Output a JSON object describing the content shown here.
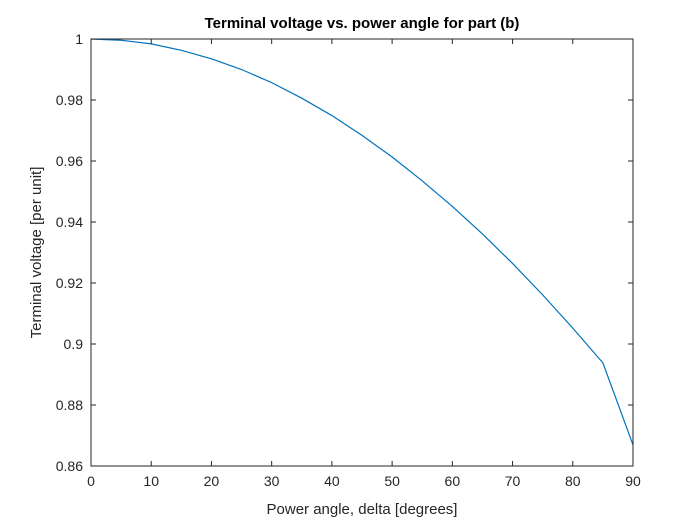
{
  "chart_data": {
    "type": "line",
    "title": "Terminal voltage vs. power angle for part (b)",
    "xlabel": "Power angle, delta [degrees]",
    "ylabel": "Terminal voltage [per unit]",
    "xlim": [
      0,
      90
    ],
    "ylim": [
      0.86,
      1
    ],
    "xticks": [
      0,
      10,
      20,
      30,
      40,
      50,
      60,
      70,
      80,
      90
    ],
    "yticks": [
      0.86,
      0.88,
      0.9,
      0.92,
      0.94,
      0.96,
      0.98,
      1
    ],
    "xtick_labels": [
      "0",
      "10",
      "20",
      "30",
      "40",
      "50",
      "60",
      "70",
      "80",
      "90"
    ],
    "ytick_labels": [
      "0.86",
      "0.88",
      "0.9",
      "0.92",
      "0.94",
      "0.96",
      "0.98",
      "1"
    ],
    "grid": false,
    "box": true,
    "series": [
      {
        "color": "#0072bd",
        "x": [
          0,
          5,
          10,
          15,
          20,
          25,
          30,
          35,
          40,
          45,
          50,
          55,
          60,
          65,
          70,
          75,
          80,
          85,
          90
        ],
        "y": [
          1.0,
          0.9996,
          0.9984,
          0.9963,
          0.9935,
          0.99,
          0.9857,
          0.9806,
          0.9749,
          0.9684,
          0.9613,
          0.9535,
          0.9451,
          0.9361,
          0.9264,
          0.9161,
          0.9052,
          0.8938,
          0.8669
        ]
      }
    ]
  }
}
